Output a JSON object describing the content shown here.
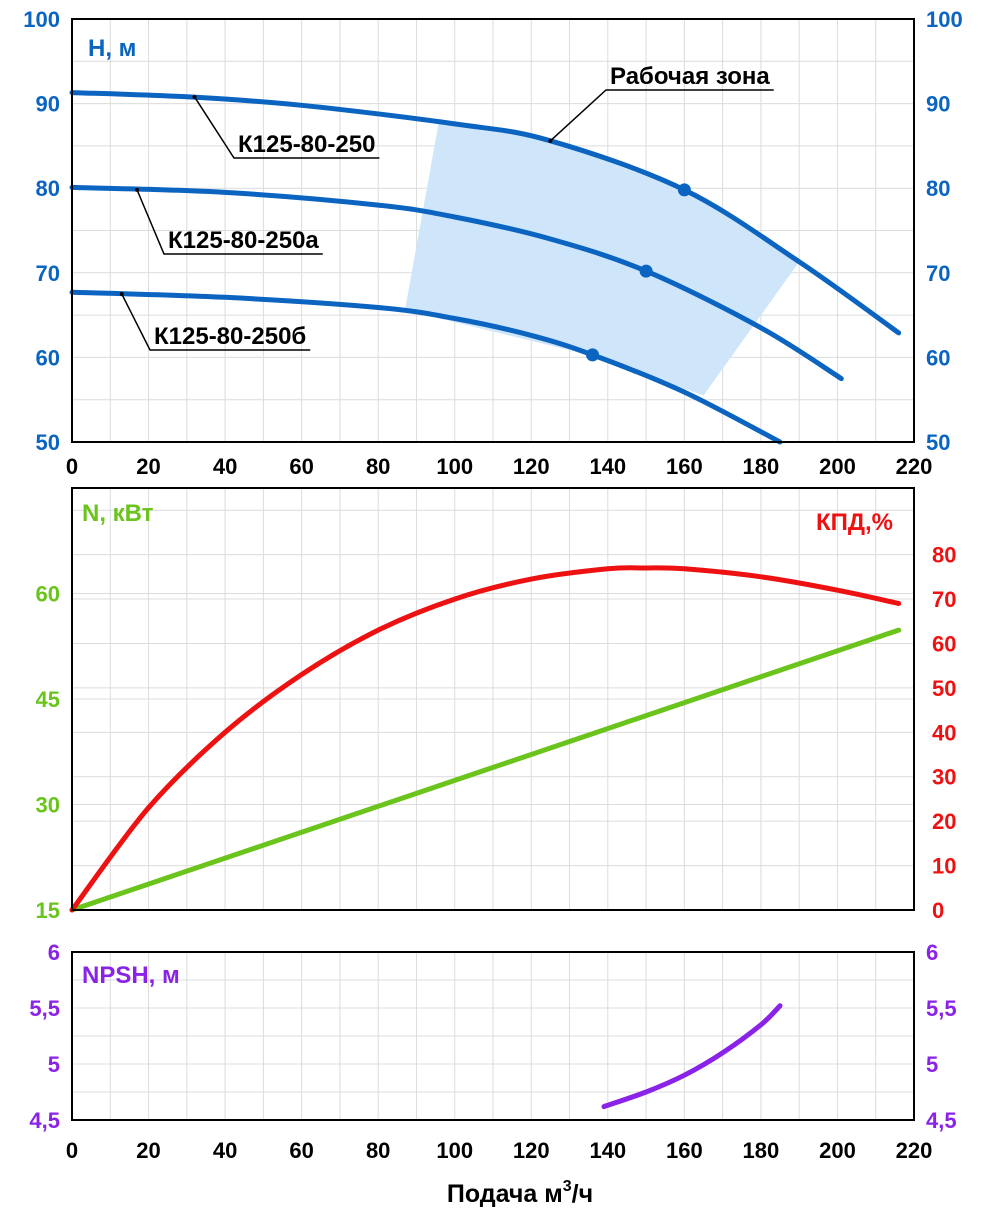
{
  "colors": {
    "head": "#0a64c0",
    "head_axis": "#0a64c0",
    "power": "#6ac41c",
    "efficiency": "#ee1111",
    "npsh": "#8a22e8",
    "zone": "#cfe5fa",
    "frame": "#000000"
  },
  "xaxis": {
    "range": [
      0,
      220
    ],
    "ticks": [
      "0",
      "20",
      "40",
      "60",
      "80",
      "100",
      "120",
      "140",
      "160",
      "180",
      "200",
      "220"
    ],
    "label_main": "Подача м",
    "label_sup": "3",
    "label_tail": "/ч"
  },
  "chart_data": [
    {
      "type": "line",
      "id": "head",
      "ylabel": "H, м",
      "ylim": [
        50,
        100
      ],
      "yticks": [
        "50",
        "60",
        "70",
        "80",
        "90",
        "100"
      ],
      "zone_label": "Рабочая зона",
      "zone": {
        "upper_x": [
          96,
          190
        ],
        "lower_x": [
          165,
          87
        ],
        "poly": [
          [
            96,
            88.2
          ],
          [
            125,
            85.6
          ],
          [
            160,
            79.8
          ],
          [
            190,
            71.3
          ],
          [
            165,
            55.5
          ],
          [
            135,
            60.3
          ],
          [
            87,
            65.6
          ]
        ]
      },
      "series": [
        {
          "name": "К125-80-250",
          "x": [
            0,
            30,
            60,
            100,
            125,
            160,
            190,
            216
          ],
          "y": [
            91.3,
            90.8,
            89.8,
            87.6,
            85.6,
            79.8,
            71.3,
            62.9
          ],
          "point": [
            160,
            79.8
          ],
          "label_at": [
            32,
            90.8
          ]
        },
        {
          "name": "К125-80-250а",
          "x": [
            0,
            40,
            80,
            100,
            125,
            150,
            180,
            201
          ],
          "y": [
            80.1,
            79.5,
            78.0,
            76.6,
            74.0,
            70.2,
            63.5,
            57.5
          ],
          "point": [
            150,
            70.2
          ],
          "label_at": [
            17,
            79.8
          ]
        },
        {
          "name": "К125-80-250б",
          "x": [
            0,
            40,
            80,
            100,
            120,
            136,
            160,
            185
          ],
          "y": [
            67.7,
            67.1,
            65.9,
            64.6,
            62.6,
            60.3,
            55.9,
            50.0
          ],
          "point": [
            136,
            60.3
          ],
          "label_at": [
            13,
            67.5
          ]
        }
      ]
    },
    {
      "type": "line",
      "id": "power_efficiency",
      "ylabel_left": "N, кВт",
      "ylabel_right": "КПД,%",
      "ylim_left": [
        15,
        75
      ],
      "yticks_left": [
        "15",
        "30",
        "45",
        "60"
      ],
      "ylim_right": [
        0,
        95
      ],
      "yticks_right": [
        "0",
        "10",
        "20",
        "30",
        "40",
        "50",
        "60",
        "70",
        "80"
      ],
      "series": [
        {
          "name": "N",
          "axis": "left",
          "x": [
            0,
            216
          ],
          "y": [
            15,
            54.8
          ]
        },
        {
          "name": "КПД",
          "axis": "right",
          "x": [
            0,
            20,
            40,
            60,
            80,
            100,
            120,
            140,
            150,
            160,
            180,
            200,
            216
          ],
          "y": [
            0,
            23,
            40,
            53,
            63,
            70,
            74.5,
            76.8,
            77,
            76.8,
            75,
            72,
            69
          ]
        }
      ]
    },
    {
      "type": "line",
      "id": "npsh",
      "ylabel": "NPSH, м",
      "ylim": [
        4.5,
        6
      ],
      "yticks": [
        "4,5",
        "5",
        "5,5",
        "6"
      ],
      "series": [
        {
          "name": "NPSH",
          "x": [
            139,
            150,
            160,
            170,
            180,
            185
          ],
          "y": [
            4.62,
            4.75,
            4.9,
            5.1,
            5.35,
            5.52
          ]
        }
      ]
    }
  ]
}
